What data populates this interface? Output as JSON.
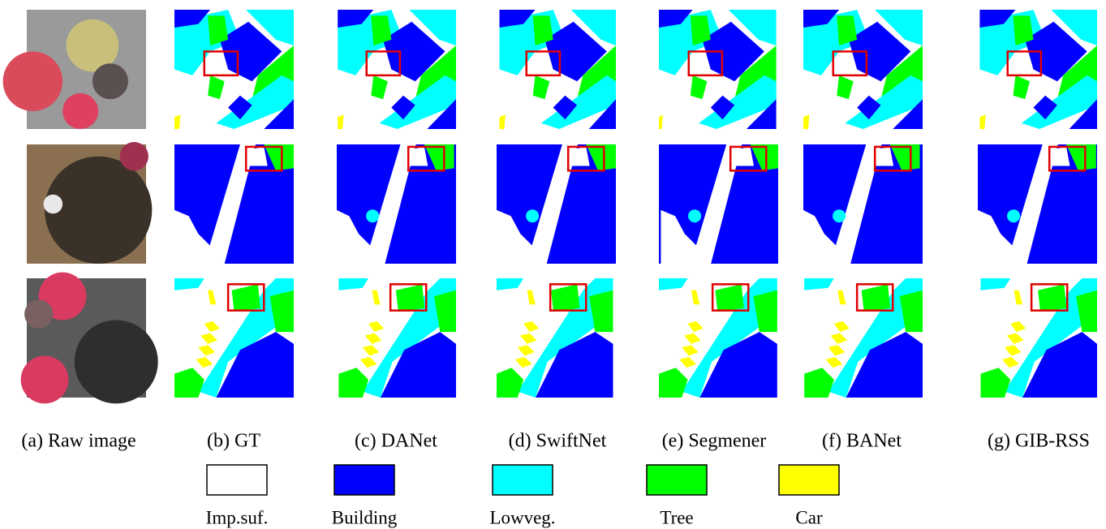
{
  "columns": [
    {
      "caption": "(a) Raw image"
    },
    {
      "caption": "(b) GT"
    },
    {
      "caption": "(c) DANet"
    },
    {
      "caption": "(d) SwiftNet"
    },
    {
      "caption": "(e) Segmener"
    },
    {
      "caption": "(f) BANet"
    },
    {
      "caption": "(g) GIB-RSS"
    }
  ],
  "legend": [
    {
      "label": "Imp.suf.",
      "color": "#ffffff"
    },
    {
      "label": "Building",
      "color": "#0000ff"
    },
    {
      "label": "Lowveg.",
      "color": "#00ffff"
    },
    {
      "label": "Tree",
      "color": "#00ff00"
    },
    {
      "label": "Car",
      "color": "#ffff00"
    }
  ]
}
